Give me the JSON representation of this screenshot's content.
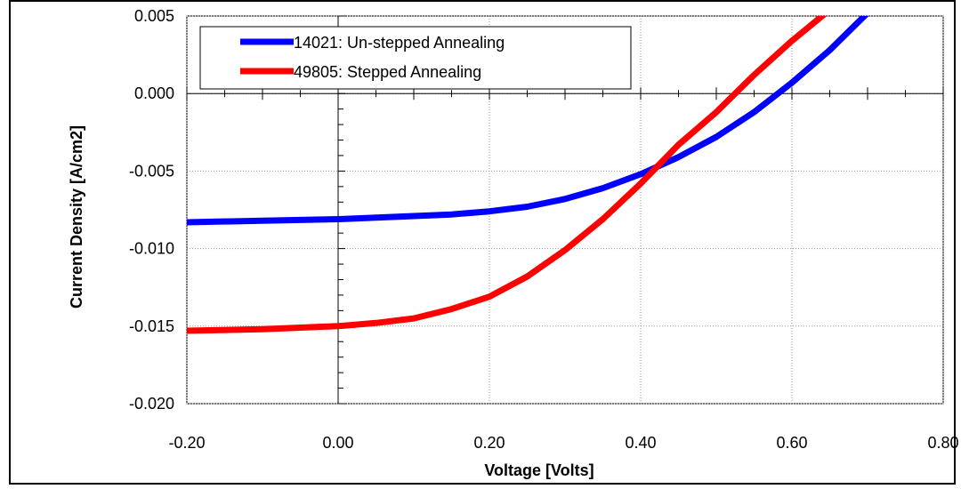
{
  "chart_data": {
    "type": "line",
    "xlabel": "Voltage [Volts]",
    "ylabel": "Current Density [A/cm2]",
    "xlim": [
      -0.2,
      0.8
    ],
    "ylim": [
      -0.02,
      0.005
    ],
    "x_ticks": [
      "-0.20",
      "0.00",
      "0.20",
      "0.40",
      "0.60",
      "0.80"
    ],
    "y_ticks": [
      "0.005",
      "0.000",
      "-0.005",
      "-0.010",
      "-0.015",
      "-0.020"
    ],
    "grid": true,
    "legend_position": "top-left",
    "series": [
      {
        "name": "14021: Un-stepped Annealing",
        "color": "#0000ff",
        "x": [
          -0.2,
          -0.1,
          0.0,
          0.1,
          0.15,
          0.2,
          0.25,
          0.3,
          0.35,
          0.4,
          0.45,
          0.5,
          0.55,
          0.6,
          0.65,
          0.7
        ],
        "y": [
          -0.0083,
          -0.0082,
          -0.0081,
          -0.0079,
          -0.0078,
          -0.0076,
          -0.0073,
          -0.0068,
          -0.0061,
          -0.0052,
          -0.0041,
          -0.0028,
          -0.0012,
          0.0007,
          0.0028,
          0.0052
        ]
      },
      {
        "name": "49805: Stepped Annealing",
        "color": "#ff0000",
        "x": [
          -0.2,
          -0.1,
          0.0,
          0.05,
          0.1,
          0.15,
          0.2,
          0.25,
          0.3,
          0.35,
          0.4,
          0.45,
          0.5,
          0.55,
          0.6,
          0.65
        ],
        "y": [
          -0.0153,
          -0.0152,
          -0.015,
          -0.0148,
          -0.0145,
          -0.0139,
          -0.0131,
          -0.0118,
          -0.0101,
          -0.0081,
          -0.0058,
          -0.0033,
          -0.0012,
          0.0012,
          0.0034,
          0.0054
        ]
      }
    ]
  }
}
